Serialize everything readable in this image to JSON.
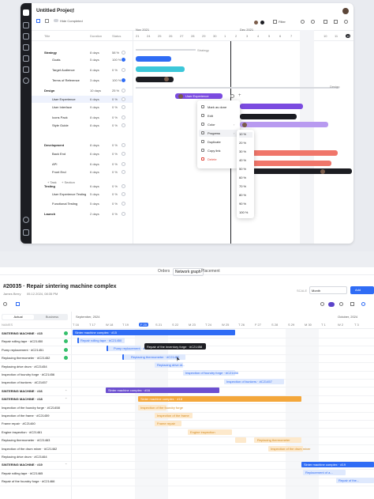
{
  "top": {
    "title": "Untitled Project",
    "hide_completed": "Hide Completed",
    "filter_label": "Filter",
    "columns": {
      "title": "Title",
      "duration": "Duration",
      "status": "Status"
    },
    "months": [
      "Nov 2021",
      "Dec 2021"
    ],
    "days": [
      "21",
      "24",
      "25",
      "26",
      "27",
      "28",
      "29",
      "30",
      "1",
      "2",
      "3",
      "4",
      "5",
      "6",
      "7",
      "8",
      "9",
      "10",
      "11",
      "12"
    ],
    "today_day": "12",
    "rows": [
      {
        "title": "Strategy",
        "duration": "8 days",
        "status": "58 %",
        "group": true
      },
      {
        "title": "Goals",
        "duration": "5 days",
        "status": "100 %",
        "group": false
      },
      {
        "title": "Target Audience",
        "duration": "6 days",
        "status": "0 %",
        "group": false
      },
      {
        "title": "Terms of Reference",
        "duration": "3 days",
        "status": "100 %",
        "group": false
      },
      {
        "title": "Design",
        "duration": "10 days",
        "status": "25 %",
        "group": true
      },
      {
        "title": "User Experience",
        "duration": "6 days",
        "status": "0 %",
        "group": false
      },
      {
        "title": "User Interface",
        "duration": "9 days",
        "status": "0 %",
        "group": false
      },
      {
        "title": "Icons Pack",
        "duration": "8 days",
        "status": "0 %",
        "group": false
      },
      {
        "title": "Style Guide",
        "duration": "8 days",
        "status": "0 %",
        "group": false
      },
      {
        "title": "Development",
        "duration": "8 days",
        "status": "0 %",
        "group": true
      },
      {
        "title": "Back End",
        "duration": "6 days",
        "status": "0 %",
        "group": false
      },
      {
        "title": "API",
        "duration": "6 days",
        "status": "0 %",
        "group": false
      },
      {
        "title": "Front End",
        "duration": "6 days",
        "status": "0 %",
        "group": false
      },
      {
        "title": "Testing",
        "duration": "6 days",
        "status": "0 %",
        "group": true
      },
      {
        "title": "User Experience Testing",
        "duration": "5 days",
        "status": "0 %",
        "group": false
      },
      {
        "title": "Functional Testing",
        "duration": "5 days",
        "status": "0 %",
        "group": false
      },
      {
        "title": "Launch",
        "duration": "2 days",
        "status": "0 %",
        "group": true
      }
    ],
    "add_task": "Task",
    "add_section": "Section",
    "bar_labels": {
      "strategy": "Strategy",
      "design": "Design",
      "user_experience": "User Experience"
    },
    "context_menu": [
      "Mark as done",
      "Edit",
      "Color",
      "Progress",
      "Duplicate",
      "Copy link",
      "Delete"
    ],
    "progress_options": [
      "10 %",
      "20 %",
      "30 %",
      "40 %",
      "50 %",
      "60 %",
      "70 %",
      "80 %",
      "90 %",
      "100 %"
    ],
    "colors": {
      "blue": "#2f6cf5",
      "teal": "#3cc7d9",
      "violet": "#7b4be0",
      "lavender": "#b89af0",
      "salmon": "#f0766a",
      "dark": "#1c1d22"
    }
  },
  "bottom": {
    "tabs": [
      "Orders",
      "Network graph",
      "Placement"
    ],
    "title": "#20035 · Repair sintering machine complex",
    "author": "James Berry",
    "date": "05.12.2024, 08:35 PM",
    "scale_label": "SCALE",
    "scale_value": "Month",
    "add_label": "Add",
    "toggle": [
      "Actual",
      "Business"
    ],
    "name_header": "NAMES",
    "months": [
      "September, 2024",
      "October, 2024"
    ],
    "days": [
      "T 16",
      "T 17",
      "W 18",
      "T 19",
      "F 20",
      "S 21",
      "S 22",
      "M 23",
      "T 24",
      "W 25",
      "T 26",
      "F 27",
      "S 28",
      "S 29",
      "M 30",
      "T 1",
      "W 2",
      "T 3"
    ],
    "rows": [
      {
        "name": "SINTERING MACHINE · #15",
        "bold": true,
        "status": "done"
      },
      {
        "name": "Repair rolling tape · #C21450",
        "bold": false,
        "status": "done"
      },
      {
        "name": "Pump replacement · #C21451",
        "bold": false,
        "status": "done"
      },
      {
        "name": "Replacing thermometer · #C21452",
        "bold": false,
        "status": "done"
      },
      {
        "name": "Replacing drive drum · #C21454",
        "bold": false,
        "status": ""
      },
      {
        "name": "Inspection of foundry forge · #C21456",
        "bold": false,
        "status": ""
      },
      {
        "name": "Inspection of bunkers · #C21457",
        "bold": false,
        "status": ""
      },
      {
        "name": "SINTERING MACHINE · #16",
        "bold": true,
        "status": ""
      },
      {
        "name": "SINTERING MACHINE · #18",
        "bold": true,
        "status": ""
      },
      {
        "name": "Inspection of the foundry forge · #C21458",
        "bold": false,
        "status": ""
      },
      {
        "name": "Inspection of the frame · #C21459",
        "bold": false,
        "status": ""
      },
      {
        "name": "Frame repair · #C21460",
        "bold": false,
        "status": ""
      },
      {
        "name": "Engine inspection · #C21461",
        "bold": false,
        "status": ""
      },
      {
        "name": "Replacing thermometer · #C21463",
        "bold": false,
        "status": ""
      },
      {
        "name": "Inspection of the drum mixer · #C21462",
        "bold": false,
        "status": ""
      },
      {
        "name": "Replacing drive drum · #C21464",
        "bold": false,
        "status": ""
      },
      {
        "name": "SINTERING MACHINE · #19",
        "bold": true,
        "status": ""
      },
      {
        "name": "Repair rolling tape · #C21465",
        "bold": false,
        "status": ""
      },
      {
        "name": "Repair of the foundry forge · #C21466",
        "bold": false,
        "status": ""
      }
    ],
    "bars": {
      "sm15": "Sinter machine complex · #15",
      "rolling": "Repair rolling tape · #C21450",
      "pump": "Pump replacement · #C21451",
      "thermo": "Replacing thermometer · #C21452",
      "drum": "Replacing drive dr...",
      "forge": "Inspection of foundry forge · #C21456",
      "bunkers": "Inspection of bunkers · #C21457",
      "sm16": "Sinter machine complex · #16",
      "sm18": "Sinter machine complex · #18",
      "forge2": "Inspection of the foundry forge",
      "frame": "Inspection of the frame",
      "framerep": "Frame repair",
      "engine": "Engine inspection",
      "thermo2": "Replacing thermometer",
      "mixer": "Inspection of the drum mixer",
      "sm19": "Sinter machine complex · #19",
      "rolling2": "Replacement of a...",
      "forge3": "Repair of the..."
    },
    "tooltip": "Repair of the inventory forge · #C21458"
  }
}
